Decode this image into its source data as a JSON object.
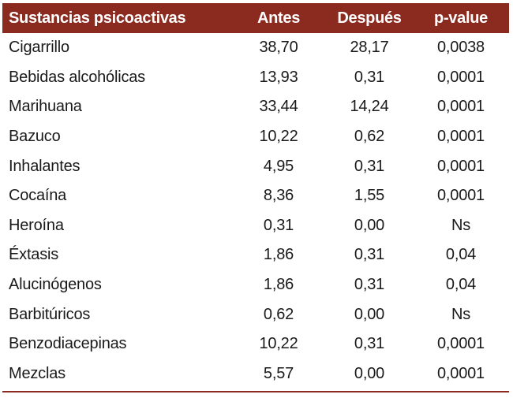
{
  "table": {
    "headers": [
      "Sustancias psicoactivas",
      "Antes",
      "Después",
      "p-value"
    ],
    "rows": [
      [
        "Cigarrillo",
        "38,70",
        "28,17",
        "0,0038"
      ],
      [
        "Bebidas alcohólicas",
        "13,93",
        "0,31",
        "0,0001"
      ],
      [
        "Marihuana",
        "33,44",
        "14,24",
        "0,0001"
      ],
      [
        "Bazuco",
        "10,22",
        "0,62",
        "0,0001"
      ],
      [
        "Inhalantes",
        "4,95",
        "0,31",
        "0,0001"
      ],
      [
        "Cocaína",
        "8,36",
        "1,55",
        "0,0001"
      ],
      [
        "Heroína",
        "0,31",
        "0,00",
        "Ns"
      ],
      [
        "Éxtasis",
        "1,86",
        "0,31",
        "0,04"
      ],
      [
        "Alucinógenos",
        "1,86",
        "0,31",
        "0,04"
      ],
      [
        "Barbitúricos",
        "0,62",
        "0,00",
        "Ns"
      ],
      [
        "Benzodiacepinas",
        "10,22",
        "0,31",
        "0,0001"
      ],
      [
        "Mezclas",
        "5,57",
        "0,00",
        "0,0001"
      ]
    ]
  },
  "colors": {
    "header_background": "#8b2a1e",
    "header_text": "#ffffff",
    "body_text": "#1a1a1a",
    "rule": "#8b2a1e"
  }
}
